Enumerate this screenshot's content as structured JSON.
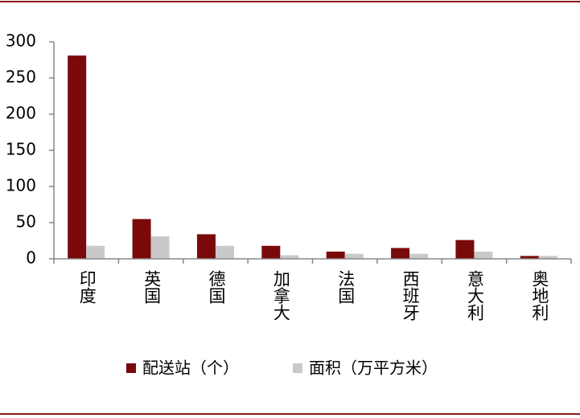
{
  "chart_data": {
    "type": "bar",
    "categories": [
      "印度",
      "英国",
      "德国",
      "加拿大",
      "法国",
      "西班牙",
      "意大利",
      "奥地利"
    ],
    "series": [
      {
        "name": "配送站（个）",
        "color": "#7a0a0a",
        "values": [
          281,
          55,
          34,
          18,
          10,
          15,
          26,
          4
        ]
      },
      {
        "name": "面积（万平方米）",
        "color": "#c9c9c9",
        "values": [
          18,
          31,
          18,
          5,
          7,
          7,
          10,
          4
        ]
      }
    ],
    "ylim": [
      0,
      300
    ],
    "yticks": [
      0,
      50,
      100,
      150,
      200,
      250,
      300
    ],
    "grid": false
  }
}
